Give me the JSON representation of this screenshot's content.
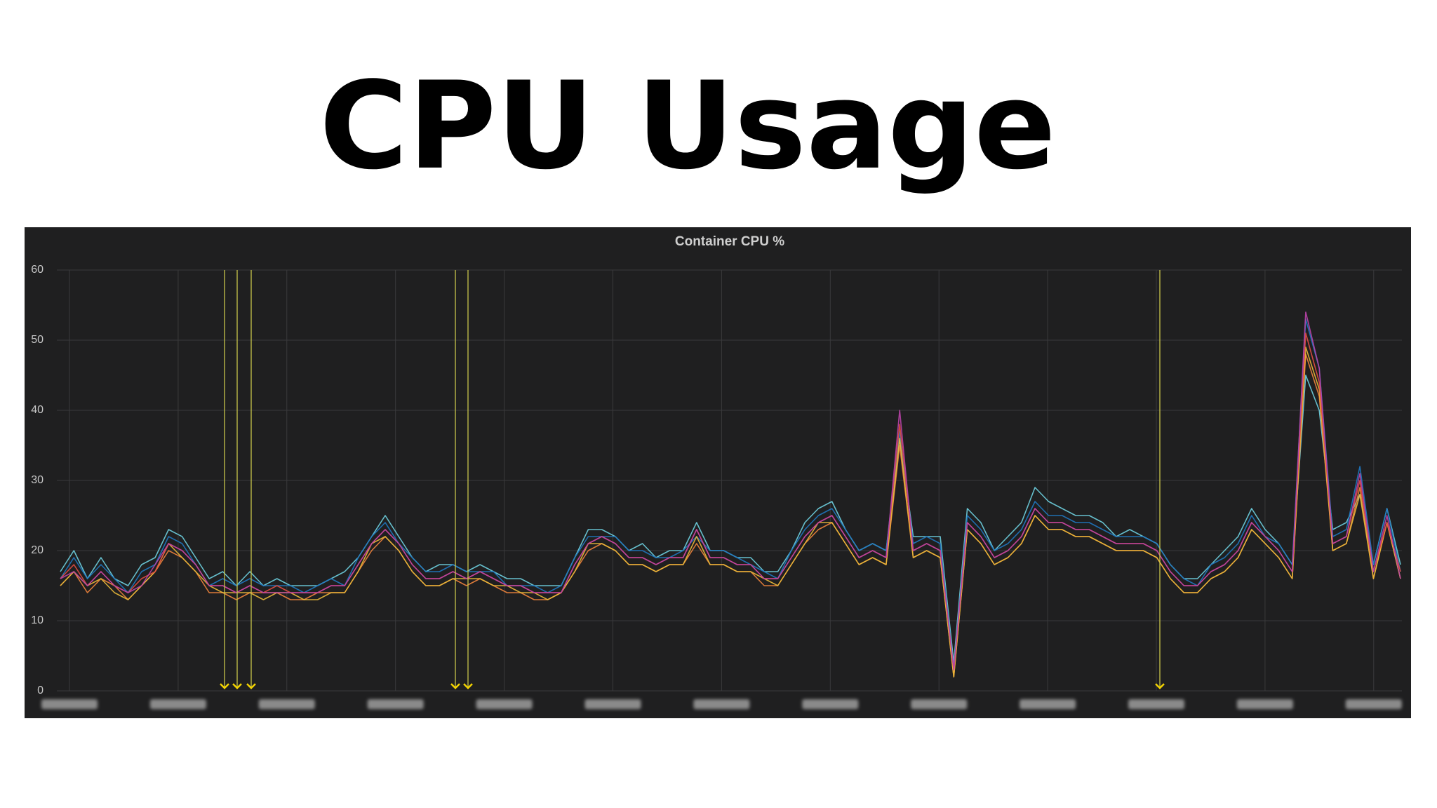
{
  "title": "CPU Usage",
  "chart_data": {
    "type": "line",
    "title": "Container CPU %",
    "ylim": [
      0,
      60
    ],
    "yticks": [
      0,
      10,
      20,
      30,
      40,
      50,
      60
    ],
    "grid": true,
    "series": [
      {
        "color": "#6ed0e0",
        "values": [
          17,
          20,
          16,
          19,
          16,
          15,
          18,
          19,
          23,
          22,
          19,
          16,
          17,
          15,
          17,
          15,
          16,
          15,
          15,
          15,
          16,
          17,
          19,
          22,
          25,
          22,
          19,
          17,
          18,
          18,
          17,
          18,
          17,
          16,
          16,
          15,
          15,
          15,
          19,
          23,
          23,
          22,
          20,
          21,
          19,
          20,
          20,
          24,
          20,
          20,
          19,
          19,
          17,
          17,
          20,
          24,
          26,
          27,
          23,
          20,
          21,
          20,
          36,
          22,
          22,
          22,
          4,
          26,
          24,
          20,
          22,
          24,
          29,
          27,
          26,
          25,
          25,
          24,
          22,
          23,
          22,
          21,
          18,
          16,
          16,
          18,
          20,
          22,
          26,
          23,
          21,
          18,
          45,
          40,
          23,
          24,
          28,
          18,
          26,
          18
        ]
      },
      {
        "color": "#1f78c1",
        "values": [
          16,
          19,
          16,
          18,
          16,
          14,
          17,
          18,
          22,
          21,
          18,
          15,
          16,
          15,
          16,
          15,
          15,
          15,
          14,
          15,
          16,
          15,
          19,
          22,
          24,
          21,
          19,
          17,
          17,
          18,
          17,
          17,
          17,
          15,
          15,
          15,
          14,
          15,
          19,
          22,
          22,
          22,
          20,
          20,
          19,
          19,
          20,
          22,
          20,
          20,
          19,
          18,
          17,
          16,
          20,
          23,
          25,
          26,
          23,
          20,
          21,
          20,
          37,
          21,
          22,
          21,
          3,
          25,
          23,
          20,
          21,
          23,
          27,
          25,
          25,
          24,
          24,
          23,
          22,
          22,
          22,
          21,
          18,
          16,
          15,
          18,
          19,
          21,
          25,
          22,
          21,
          18,
          53,
          46,
          22,
          23,
          32,
          18,
          26,
          17
        ]
      },
      {
        "color": "#ef843c",
        "values": [
          15,
          17,
          14,
          16,
          15,
          13,
          15,
          17,
          20,
          19,
          17,
          14,
          14,
          13,
          14,
          14,
          14,
          13,
          13,
          14,
          14,
          14,
          17,
          20,
          22,
          20,
          17,
          15,
          15,
          16,
          15,
          16,
          15,
          14,
          14,
          13,
          13,
          14,
          17,
          20,
          21,
          20,
          18,
          18,
          17,
          18,
          18,
          21,
          18,
          18,
          17,
          17,
          15,
          15,
          18,
          21,
          23,
          24,
          21,
          18,
          19,
          18,
          35,
          19,
          20,
          19,
          2,
          23,
          21,
          18,
          19,
          21,
          25,
          23,
          23,
          22,
          22,
          21,
          20,
          20,
          20,
          19,
          16,
          14,
          14,
          16,
          17,
          19,
          23,
          21,
          19,
          16,
          48,
          42,
          20,
          21,
          29,
          16,
          24,
          16
        ]
      },
      {
        "color": "#eab839",
        "values": [
          15,
          17,
          15,
          16,
          14,
          13,
          15,
          17,
          21,
          19,
          17,
          15,
          14,
          14,
          14,
          13,
          14,
          14,
          13,
          13,
          14,
          14,
          17,
          21,
          22,
          20,
          17,
          15,
          15,
          16,
          16,
          16,
          15,
          15,
          14,
          14,
          13,
          14,
          17,
          21,
          21,
          20,
          18,
          18,
          17,
          18,
          18,
          22,
          18,
          18,
          17,
          17,
          16,
          15,
          18,
          21,
          24,
          24,
          21,
          18,
          19,
          18,
          36,
          19,
          20,
          19,
          2,
          23,
          21,
          18,
          19,
          21,
          25,
          23,
          23,
          22,
          22,
          21,
          20,
          20,
          20,
          19,
          16,
          14,
          14,
          16,
          17,
          19,
          23,
          21,
          19,
          16,
          49,
          43,
          20,
          21,
          28,
          16,
          24,
          16
        ]
      },
      {
        "color": "#e24d42",
        "values": [
          16,
          18,
          15,
          17,
          15,
          14,
          16,
          17,
          21,
          20,
          18,
          15,
          15,
          14,
          15,
          14,
          15,
          14,
          14,
          14,
          15,
          15,
          18,
          21,
          23,
          21,
          18,
          16,
          16,
          17,
          16,
          17,
          16,
          15,
          15,
          14,
          14,
          14,
          18,
          21,
          22,
          21,
          19,
          19,
          18,
          19,
          19,
          23,
          19,
          19,
          18,
          18,
          16,
          16,
          19,
          22,
          24,
          25,
          22,
          19,
          20,
          19,
          38,
          20,
          21,
          20,
          3,
          24,
          22,
          19,
          20,
          22,
          26,
          24,
          24,
          23,
          23,
          22,
          21,
          21,
          21,
          20,
          17,
          15,
          15,
          17,
          18,
          20,
          24,
          22,
          20,
          17,
          51,
          44,
          21,
          22,
          30,
          17,
          24,
          17
        ]
      },
      {
        "color": "#ba43a9",
        "values": [
          16,
          17,
          15,
          17,
          15,
          14,
          15,
          18,
          21,
          20,
          18,
          15,
          15,
          14,
          15,
          14,
          14,
          14,
          14,
          14,
          15,
          15,
          18,
          21,
          23,
          21,
          18,
          16,
          16,
          17,
          16,
          17,
          16,
          15,
          15,
          14,
          14,
          14,
          18,
          21,
          22,
          21,
          19,
          19,
          18,
          19,
          19,
          23,
          19,
          19,
          18,
          18,
          16,
          16,
          19,
          22,
          24,
          25,
          22,
          19,
          20,
          19,
          40,
          20,
          21,
          20,
          3,
          24,
          22,
          19,
          20,
          22,
          26,
          24,
          24,
          23,
          23,
          22,
          21,
          21,
          21,
          20,
          17,
          15,
          15,
          17,
          18,
          20,
          24,
          22,
          20,
          17,
          54,
          46,
          21,
          22,
          31,
          17,
          25,
          16
        ]
      }
    ]
  }
}
